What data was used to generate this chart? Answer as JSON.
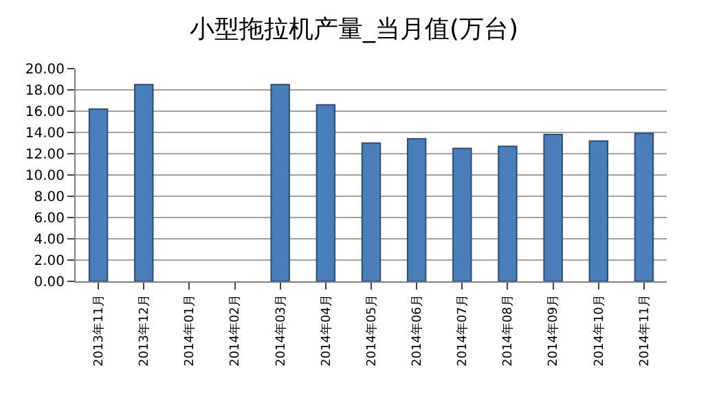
{
  "chart_data": {
    "type": "bar",
    "title": "小型拖拉机产量_当月值(万台)",
    "categories": [
      "2013年11月",
      "2013年12月",
      "2014年01月",
      "2014年02月",
      "2014年03月",
      "2014年04月",
      "2014年05月",
      "2014年06月",
      "2014年07月",
      "2014年08月",
      "2014年09月",
      "2014年10月",
      "2014年11月"
    ],
    "values": [
      16.2,
      18.5,
      null,
      null,
      18.5,
      16.6,
      13.0,
      13.4,
      12.5,
      12.7,
      13.8,
      13.2,
      13.9
    ],
    "color": "#4a7ebb",
    "ylim": [
      0,
      20
    ],
    "yticks": [
      {
        "value": 0,
        "label": "0.00"
      },
      {
        "value": 2,
        "label": "2.00"
      },
      {
        "value": 4,
        "label": "4.00"
      },
      {
        "value": 6,
        "label": "6.00"
      },
      {
        "value": 8,
        "label": "8.00"
      },
      {
        "value": 10,
        "label": "10.00"
      },
      {
        "value": 12,
        "label": "12.00"
      },
      {
        "value": 14,
        "label": "14.00"
      },
      {
        "value": 16,
        "label": "16.00"
      },
      {
        "value": 18,
        "label": "18.00"
      },
      {
        "value": 20,
        "label": "20.00"
      }
    ],
    "grid": "y"
  }
}
